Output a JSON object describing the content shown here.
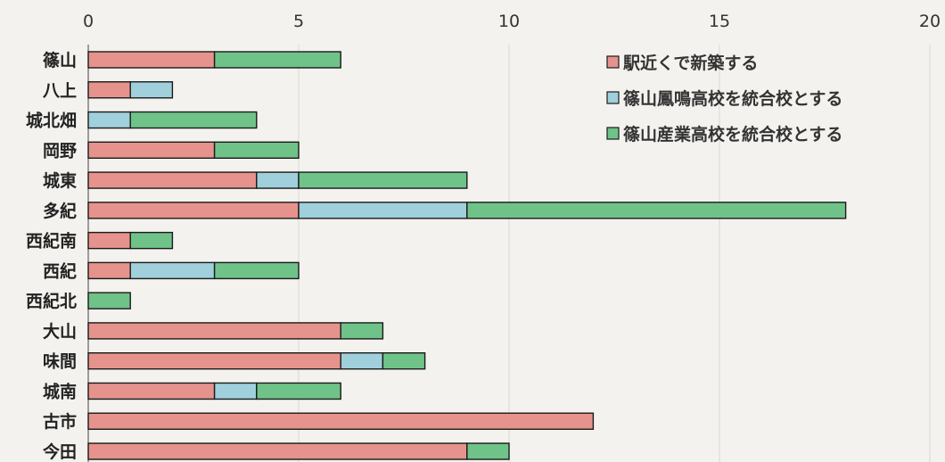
{
  "chart_data": {
    "type": "bar",
    "orientation": "horizontal",
    "stacked": true,
    "categories": [
      "篠山",
      "八上",
      "城北畑",
      "岡野",
      "城東",
      "多紀",
      "西紀南",
      "西紀",
      "西紀北",
      "大山",
      "味間",
      "城南",
      "古市",
      "今田"
    ],
    "series": [
      {
        "name": "駅近くで新築する",
        "color": "#e6938d",
        "values": [
          3,
          1,
          0,
          3,
          4,
          5,
          1,
          1,
          0,
          6,
          6,
          3,
          12,
          9
        ]
      },
      {
        "name": "篠山鳳鳴高校を統合校とする",
        "color": "#9fd0dc",
        "values": [
          0,
          1,
          1,
          0,
          1,
          4,
          0,
          2,
          0,
          0,
          1,
          1,
          0,
          0
        ]
      },
      {
        "name": "篠山産業高校を統合校とする",
        "color": "#6fc389",
        "values": [
          3,
          0,
          3,
          2,
          4,
          9,
          1,
          2,
          1,
          1,
          1,
          2,
          0,
          1
        ]
      }
    ],
    "xlim": [
      0,
      20
    ],
    "xticks": [
      0,
      5,
      10,
      15,
      20
    ],
    "title": "",
    "xlabel": "",
    "ylabel": "",
    "grid": "vertical",
    "legend_position": "top-right"
  }
}
